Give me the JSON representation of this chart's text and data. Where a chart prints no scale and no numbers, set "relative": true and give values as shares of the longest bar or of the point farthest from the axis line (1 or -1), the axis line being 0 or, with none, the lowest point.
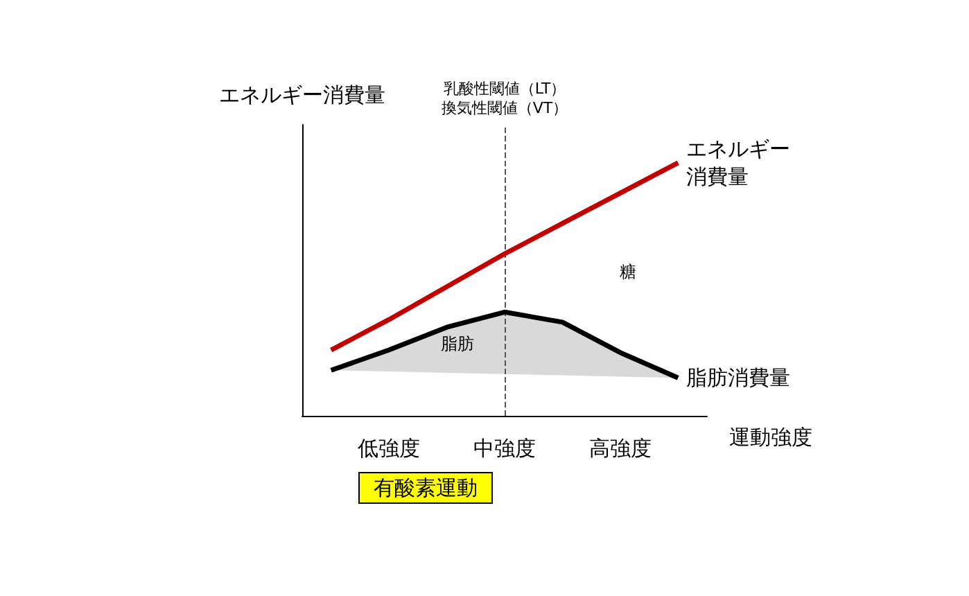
{
  "chart_data": {
    "type": "line",
    "relative": true,
    "xlabel": "運動強度",
    "ylabel": "エネルギー消費量",
    "categories": [
      null,
      "低強度",
      null,
      "中強度",
      null,
      "高強度",
      null
    ],
    "series": [
      {
        "name": "エネルギー消費量",
        "color": "#c00000",
        "values": [
          0.26,
          0.38,
          0.51,
          0.64,
          0.76,
          0.88,
          1.0
        ]
      },
      {
        "name": "脂肪消費量",
        "color": "#000000",
        "values": [
          0.18,
          0.26,
          0.35,
          0.41,
          0.37,
          0.25,
          0.15
        ],
        "lower": [
          0.18,
          0.175,
          0.17,
          0.165,
          0.16,
          0.155,
          0.15
        ],
        "upper": [
          0.18,
          0.26,
          0.35,
          0.41,
          0.37,
          0.25,
          0.15
        ]
      }
    ],
    "ref_lines": [
      {
        "axis": "x",
        "value": "中強度",
        "label": "乳酸性閾値（LT）換気性閾値（VT）",
        "color": "#555555",
        "line_style": "dashed"
      }
    ],
    "annotations": [
      "脂肪",
      "糖",
      "有酸素運動"
    ],
    "marker": "none",
    "grid": false,
    "legend": false
  }
}
